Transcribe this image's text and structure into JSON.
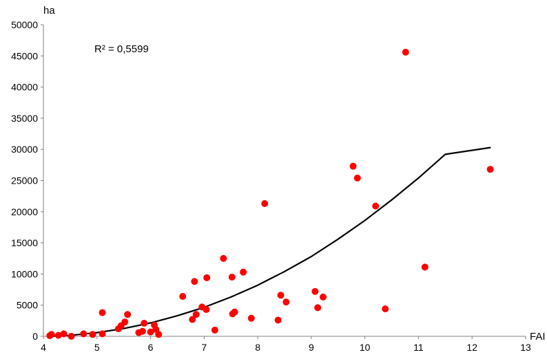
{
  "chart_data": {
    "type": "scatter",
    "title": "",
    "xlabel": "FAI",
    "ylabel": "ha",
    "xlim": [
      4,
      13
    ],
    "ylim": [
      0,
      50000
    ],
    "x_ticks": [
      4,
      5,
      6,
      7,
      8,
      9,
      10,
      11,
      12,
      13
    ],
    "y_ticks": [
      0,
      5000,
      10000,
      15000,
      20000,
      25000,
      30000,
      35000,
      40000,
      45000,
      50000
    ],
    "r_squared_label": "R² = 0,5599",
    "grid": false,
    "legend": "none",
    "point_color": "#ff0000",
    "trend_color": "#000000",
    "trendline": {
      "type": "polynomial",
      "x_start": 4.1,
      "x_end": 12.35,
      "points": [
        [
          4.1,
          0
        ],
        [
          4.5,
          140
        ],
        [
          5.0,
          600
        ],
        [
          5.5,
          1250
        ],
        [
          6.0,
          2150
        ],
        [
          6.5,
          3300
        ],
        [
          7.0,
          4650
        ],
        [
          7.5,
          6300
        ],
        [
          8.0,
          8200
        ],
        [
          8.5,
          10400
        ],
        [
          9.0,
          12800
        ],
        [
          9.5,
          15600
        ],
        [
          10.0,
          18600
        ],
        [
          10.5,
          21900
        ],
        [
          11.0,
          25400
        ],
        [
          11.5,
          29200
        ],
        [
          12.35,
          30300
        ]
      ]
    },
    "points": [
      {
        "x": 4.12,
        "y": 100
      },
      {
        "x": 4.15,
        "y": 300
      },
      {
        "x": 4.28,
        "y": 150
      },
      {
        "x": 4.38,
        "y": 400
      },
      {
        "x": 4.52,
        "y": 0
      },
      {
        "x": 4.75,
        "y": 400
      },
      {
        "x": 4.92,
        "y": 300
      },
      {
        "x": 5.1,
        "y": 400
      },
      {
        "x": 5.1,
        "y": 3800
      },
      {
        "x": 5.4,
        "y": 1200
      },
      {
        "x": 5.45,
        "y": 1700
      },
      {
        "x": 5.52,
        "y": 2300
      },
      {
        "x": 5.57,
        "y": 3500
      },
      {
        "x": 5.78,
        "y": 600
      },
      {
        "x": 5.85,
        "y": 800
      },
      {
        "x": 5.88,
        "y": 2100
      },
      {
        "x": 6.0,
        "y": 700
      },
      {
        "x": 6.07,
        "y": 1800
      },
      {
        "x": 6.1,
        "y": 1100
      },
      {
        "x": 6.15,
        "y": 300
      },
      {
        "x": 6.6,
        "y": 6400
      },
      {
        "x": 6.78,
        "y": 2700
      },
      {
        "x": 6.82,
        "y": 8800
      },
      {
        "x": 6.85,
        "y": 3500
      },
      {
        "x": 6.96,
        "y": 4700
      },
      {
        "x": 7.04,
        "y": 4300
      },
      {
        "x": 7.05,
        "y": 9400
      },
      {
        "x": 7.2,
        "y": 1000
      },
      {
        "x": 7.36,
        "y": 12500
      },
      {
        "x": 7.52,
        "y": 9500
      },
      {
        "x": 7.53,
        "y": 3600
      },
      {
        "x": 7.57,
        "y": 3900
      },
      {
        "x": 7.73,
        "y": 10300
      },
      {
        "x": 7.88,
        "y": 2900
      },
      {
        "x": 8.13,
        "y": 21300
      },
      {
        "x": 8.38,
        "y": 2600
      },
      {
        "x": 8.43,
        "y": 6600
      },
      {
        "x": 8.53,
        "y": 5500
      },
      {
        "x": 9.07,
        "y": 7200
      },
      {
        "x": 9.12,
        "y": 4600
      },
      {
        "x": 9.22,
        "y": 6300
      },
      {
        "x": 9.78,
        "y": 27300
      },
      {
        "x": 9.86,
        "y": 25400
      },
      {
        "x": 10.2,
        "y": 20900
      },
      {
        "x": 10.38,
        "y": 4400
      },
      {
        "x": 10.76,
        "y": 45600
      },
      {
        "x": 11.12,
        "y": 11100
      },
      {
        "x": 12.34,
        "y": 26800
      }
    ]
  }
}
